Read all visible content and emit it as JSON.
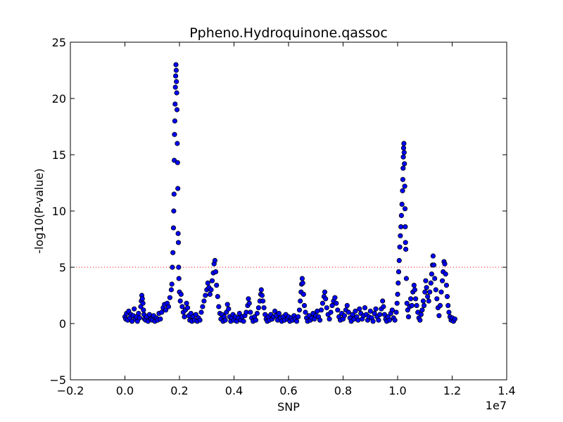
{
  "chart_data": {
    "type": "scatter",
    "title": "Ppheno.Hydroquinone.qassoc",
    "xlabel": "SNP",
    "ylabel": "-log10(P-value)",
    "x_offset_label": "1e7",
    "xlim": [
      -0.2,
      1.4
    ],
    "ylim": [
      -5,
      25
    ],
    "x_ticks": [
      -0.2,
      0.0,
      0.2,
      0.4,
      0.6,
      0.8,
      1.0,
      1.2,
      1.4
    ],
    "x_tick_labels": [
      "−0.2",
      "0.0",
      "0.2",
      "0.4",
      "0.6",
      "0.8",
      "1.0",
      "1.2",
      "1.4"
    ],
    "y_ticks": [
      -5,
      0,
      5,
      10,
      15,
      20,
      25
    ],
    "y_tick_labels": [
      "−5",
      "0",
      "5",
      "10",
      "15",
      "20",
      "25"
    ],
    "threshold": {
      "y": 5,
      "color": "#ff0000",
      "style": "dotted"
    },
    "marker_color": "#0000ff",
    "marker_edge": "#000000",
    "grid": false,
    "x_units_note": "x values in units of 1e7 (x × 10^7 = SNP position)",
    "points": [
      [
        0.0,
        0.6
      ],
      [
        0.003,
        0.4
      ],
      [
        0.006,
        0.9
      ],
      [
        0.01,
        0.3
      ],
      [
        0.014,
        1.1
      ],
      [
        0.018,
        0.5
      ],
      [
        0.022,
        0.8
      ],
      [
        0.026,
        0.2
      ],
      [
        0.03,
        0.7
      ],
      [
        0.034,
        1.3
      ],
      [
        0.038,
        0.4
      ],
      [
        0.042,
        0.6
      ],
      [
        0.046,
        0.2
      ],
      [
        0.05,
        0.9
      ],
      [
        0.054,
        0.5
      ],
      [
        0.058,
        1.5
      ],
      [
        0.06,
        2.0
      ],
      [
        0.062,
        2.5
      ],
      [
        0.064,
        2.2
      ],
      [
        0.066,
        1.8
      ],
      [
        0.068,
        1.2
      ],
      [
        0.07,
        0.8
      ],
      [
        0.072,
        0.4
      ],
      [
        0.076,
        0.3
      ],
      [
        0.08,
        0.6
      ],
      [
        0.085,
        0.2
      ],
      [
        0.09,
        0.8
      ],
      [
        0.095,
        0.4
      ],
      [
        0.1,
        0.3
      ],
      [
        0.105,
        0.7
      ],
      [
        0.11,
        0.2
      ],
      [
        0.115,
        0.5
      ],
      [
        0.12,
        0.3
      ],
      [
        0.125,
        0.9
      ],
      [
        0.13,
        0.4
      ],
      [
        0.135,
        1.0
      ],
      [
        0.14,
        1.4
      ],
      [
        0.145,
        1.7
      ],
      [
        0.15,
        1.2
      ],
      [
        0.155,
        1.8
      ],
      [
        0.16,
        1.5
      ],
      [
        0.165,
        2.3
      ],
      [
        0.17,
        3.0
      ],
      [
        0.172,
        3.5
      ],
      [
        0.174,
        5.0
      ],
      [
        0.176,
        6.3
      ],
      [
        0.178,
        8.5
      ],
      [
        0.179,
        10.0
      ],
      [
        0.18,
        11.5
      ],
      [
        0.181,
        14.5
      ],
      [
        0.182,
        16.8
      ],
      [
        0.183,
        18.0
      ],
      [
        0.184,
        19.5
      ],
      [
        0.185,
        21.0
      ],
      [
        0.186,
        22.0
      ],
      [
        0.187,
        23.0
      ],
      [
        0.188,
        22.5
      ],
      [
        0.189,
        21.5
      ],
      [
        0.19,
        20.5
      ],
      [
        0.191,
        19.0
      ],
      [
        0.192,
        16.0
      ],
      [
        0.193,
        14.3
      ],
      [
        0.194,
        12.0
      ],
      [
        0.195,
        8.0
      ],
      [
        0.196,
        7.2
      ],
      [
        0.197,
        5.0
      ],
      [
        0.198,
        4.0
      ],
      [
        0.2,
        2.8
      ],
      [
        0.203,
        2.0
      ],
      [
        0.206,
        2.6
      ],
      [
        0.21,
        1.5
      ],
      [
        0.214,
        1.0
      ],
      [
        0.218,
        0.6
      ],
      [
        0.222,
        1.2
      ],
      [
        0.226,
        1.8
      ],
      [
        0.23,
        1.4
      ],
      [
        0.234,
        0.7
      ],
      [
        0.238,
        0.3
      ],
      [
        0.242,
        0.9
      ],
      [
        0.246,
        0.2
      ],
      [
        0.25,
        0.6
      ],
      [
        0.255,
        0.3
      ],
      [
        0.26,
        0.8
      ],
      [
        0.265,
        0.2
      ],
      [
        0.27,
        0.5
      ],
      [
        0.275,
        0.3
      ],
      [
        0.28,
        1.0
      ],
      [
        0.285,
        1.5
      ],
      [
        0.29,
        2.0
      ],
      [
        0.295,
        2.5
      ],
      [
        0.3,
        3.0
      ],
      [
        0.304,
        3.6
      ],
      [
        0.308,
        3.2
      ],
      [
        0.312,
        2.6
      ],
      [
        0.316,
        3.0
      ],
      [
        0.32,
        3.8
      ],
      [
        0.324,
        4.5
      ],
      [
        0.327,
        5.3
      ],
      [
        0.33,
        5.6
      ],
      [
        0.333,
        4.6
      ],
      [
        0.336,
        3.4
      ],
      [
        0.34,
        2.4
      ],
      [
        0.344,
        1.5
      ],
      [
        0.348,
        0.9
      ],
      [
        0.352,
        0.4
      ],
      [
        0.356,
        0.8
      ],
      [
        0.36,
        0.2
      ],
      [
        0.364,
        0.6
      ],
      [
        0.368,
        0.3
      ],
      [
        0.372,
        1.0
      ],
      [
        0.376,
        1.7
      ],
      [
        0.38,
        1.3
      ],
      [
        0.384,
        0.6
      ],
      [
        0.388,
        0.2
      ],
      [
        0.392,
        0.5
      ],
      [
        0.396,
        0.8
      ],
      [
        0.4,
        0.3
      ],
      [
        0.405,
        0.6
      ],
      [
        0.41,
        0.2
      ],
      [
        0.415,
        0.5
      ],
      [
        0.42,
        0.9
      ],
      [
        0.425,
        0.3
      ],
      [
        0.43,
        0.6
      ],
      [
        0.435,
        0.2
      ],
      [
        0.44,
        0.7
      ],
      [
        0.445,
        1.0
      ],
      [
        0.45,
        1.6
      ],
      [
        0.453,
        2.2
      ],
      [
        0.456,
        1.8
      ],
      [
        0.46,
        1.0
      ],
      [
        0.465,
        0.5
      ],
      [
        0.47,
        0.2
      ],
      [
        0.475,
        0.6
      ],
      [
        0.48,
        0.3
      ],
      [
        0.485,
        0.9
      ],
      [
        0.49,
        1.4
      ],
      [
        0.495,
        2.0
      ],
      [
        0.498,
        2.6
      ],
      [
        0.5,
        3.0
      ],
      [
        0.503,
        2.5
      ],
      [
        0.506,
        2.0
      ],
      [
        0.51,
        1.4
      ],
      [
        0.514,
        0.8
      ],
      [
        0.518,
        0.4
      ],
      [
        0.522,
        0.2
      ],
      [
        0.526,
        0.6
      ],
      [
        0.53,
        0.3
      ],
      [
        0.535,
        0.8
      ],
      [
        0.54,
        0.4
      ],
      [
        0.545,
        0.6
      ],
      [
        0.55,
        1.1
      ],
      [
        0.555,
        0.7
      ],
      [
        0.56,
        0.3
      ],
      [
        0.565,
        0.9
      ],
      [
        0.57,
        0.5
      ],
      [
        0.575,
        0.2
      ],
      [
        0.58,
        0.6
      ],
      [
        0.585,
        0.3
      ],
      [
        0.59,
        0.8
      ],
      [
        0.595,
        0.4
      ],
      [
        0.6,
        0.6
      ],
      [
        0.605,
        0.2
      ],
      [
        0.61,
        0.5
      ],
      [
        0.615,
        0.3
      ],
      [
        0.62,
        0.7
      ],
      [
        0.625,
        0.4
      ],
      [
        0.63,
        0.2
      ],
      [
        0.635,
        0.6
      ],
      [
        0.64,
        1.2
      ],
      [
        0.643,
        2.0
      ],
      [
        0.646,
        2.8
      ],
      [
        0.648,
        3.5
      ],
      [
        0.65,
        4.0
      ],
      [
        0.652,
        3.6
      ],
      [
        0.655,
        2.6
      ],
      [
        0.658,
        1.6
      ],
      [
        0.662,
        1.0
      ],
      [
        0.666,
        0.5
      ],
      [
        0.67,
        0.2
      ],
      [
        0.675,
        0.7
      ],
      [
        0.68,
        0.3
      ],
      [
        0.685,
        0.5
      ],
      [
        0.69,
        0.9
      ],
      [
        0.695,
        0.4
      ],
      [
        0.7,
        0.7
      ],
      [
        0.705,
        1.1
      ],
      [
        0.71,
        0.6
      ],
      [
        0.715,
        0.3
      ],
      [
        0.72,
        1.2
      ],
      [
        0.725,
        1.8
      ],
      [
        0.73,
        2.4
      ],
      [
        0.733,
        2.8
      ],
      [
        0.736,
        2.2
      ],
      [
        0.74,
        1.4
      ],
      [
        0.745,
        0.8
      ],
      [
        0.75,
        0.4
      ],
      [
        0.755,
        1.0
      ],
      [
        0.76,
        1.6
      ],
      [
        0.765,
        2.0
      ],
      [
        0.77,
        2.3
      ],
      [
        0.775,
        1.8
      ],
      [
        0.78,
        1.2
      ],
      [
        0.785,
        0.6
      ],
      [
        0.79,
        0.3
      ],
      [
        0.795,
        0.9
      ],
      [
        0.8,
        0.4
      ],
      [
        0.805,
        0.7
      ],
      [
        0.81,
        1.2
      ],
      [
        0.815,
        1.6
      ],
      [
        0.82,
        1.0
      ],
      [
        0.825,
        0.5
      ],
      [
        0.83,
        0.2
      ],
      [
        0.835,
        0.8
      ],
      [
        0.84,
        0.4
      ],
      [
        0.845,
        1.1
      ],
      [
        0.85,
        0.6
      ],
      [
        0.855,
        0.3
      ],
      [
        0.86,
        1.3
      ],
      [
        0.865,
        0.9
      ],
      [
        0.87,
        0.4
      ],
      [
        0.875,
        0.7
      ],
      [
        0.88,
        1.4
      ],
      [
        0.885,
        0.8
      ],
      [
        0.89,
        0.3
      ],
      [
        0.895,
        0.6
      ],
      [
        0.9,
        1.1
      ],
      [
        0.905,
        0.5
      ],
      [
        0.91,
        0.2
      ],
      [
        0.915,
        0.9
      ],
      [
        0.92,
        1.3
      ],
      [
        0.925,
        0.6
      ],
      [
        0.93,
        0.3
      ],
      [
        0.935,
        0.8
      ],
      [
        0.94,
        1.3
      ],
      [
        0.945,
        2.0
      ],
      [
        0.948,
        1.5
      ],
      [
        0.952,
        0.8
      ],
      [
        0.956,
        0.4
      ],
      [
        0.96,
        0.2
      ],
      [
        0.965,
        0.6
      ],
      [
        0.97,
        0.3
      ],
      [
        0.975,
        0.9
      ],
      [
        0.98,
        1.2
      ],
      [
        0.985,
        0.5
      ],
      [
        0.99,
        0.3
      ],
      [
        0.995,
        1.0
      ],
      [
        0.998,
        1.8
      ],
      [
        1.0,
        2.6
      ],
      [
        1.002,
        3.6
      ],
      [
        1.004,
        4.6
      ],
      [
        1.006,
        5.6
      ],
      [
        1.008,
        6.8
      ],
      [
        1.01,
        7.8
      ],
      [
        1.012,
        8.6
      ],
      [
        1.014,
        9.6
      ],
      [
        1.016,
        10.6
      ],
      [
        1.018,
        11.8
      ],
      [
        1.019,
        12.8
      ],
      [
        1.02,
        13.8
      ],
      [
        1.021,
        14.8
      ],
      [
        1.022,
        15.6
      ],
      [
        1.023,
        16.0
      ],
      [
        1.024,
        15.2
      ],
      [
        1.025,
        14.2
      ],
      [
        1.026,
        12.2
      ],
      [
        1.027,
        10.2
      ],
      [
        1.028,
        8.6
      ],
      [
        1.029,
        7.2
      ],
      [
        1.03,
        6.6
      ],
      [
        1.032,
        4.0
      ],
      [
        1.034,
        1.8
      ],
      [
        1.037,
        1.2
      ],
      [
        1.04,
        0.6
      ],
      [
        1.044,
        1.5
      ],
      [
        1.048,
        2.2
      ],
      [
        1.052,
        1.6
      ],
      [
        1.056,
        2.8
      ],
      [
        1.06,
        3.4
      ],
      [
        1.063,
        3.0
      ],
      [
        1.066,
        2.2
      ],
      [
        1.07,
        1.6
      ],
      [
        1.074,
        1.0
      ],
      [
        1.078,
        0.5
      ],
      [
        1.082,
        0.3
      ],
      [
        1.086,
        0.8
      ],
      [
        1.09,
        1.2
      ],
      [
        1.094,
        2.0
      ],
      [
        1.097,
        1.6
      ],
      [
        1.1,
        2.8
      ],
      [
        1.103,
        3.8
      ],
      [
        1.106,
        3.2
      ],
      [
        1.11,
        2.4
      ],
      [
        1.114,
        2.0
      ],
      [
        1.118,
        2.8
      ],
      [
        1.122,
        3.6
      ],
      [
        1.125,
        4.4
      ],
      [
        1.128,
        5.2
      ],
      [
        1.13,
        6.0
      ],
      [
        1.133,
        5.2
      ],
      [
        1.136,
        4.0
      ],
      [
        1.14,
        3.0
      ],
      [
        1.144,
        2.2
      ],
      [
        1.148,
        1.4
      ],
      [
        1.152,
        0.7
      ],
      [
        1.156,
        1.6
      ],
      [
        1.16,
        2.8
      ],
      [
        1.164,
        3.8
      ],
      [
        1.167,
        4.6
      ],
      [
        1.17,
        5.5
      ],
      [
        1.173,
        5.3
      ],
      [
        1.176,
        4.4
      ],
      [
        1.179,
        3.4
      ],
      [
        1.182,
        2.4
      ],
      [
        1.185,
        1.6
      ],
      [
        1.188,
        1.0
      ],
      [
        1.192,
        0.6
      ],
      [
        1.196,
        0.3
      ],
      [
        1.2,
        0.5
      ],
      [
        1.205,
        0.2
      ],
      [
        1.21,
        0.4
      ]
    ]
  }
}
